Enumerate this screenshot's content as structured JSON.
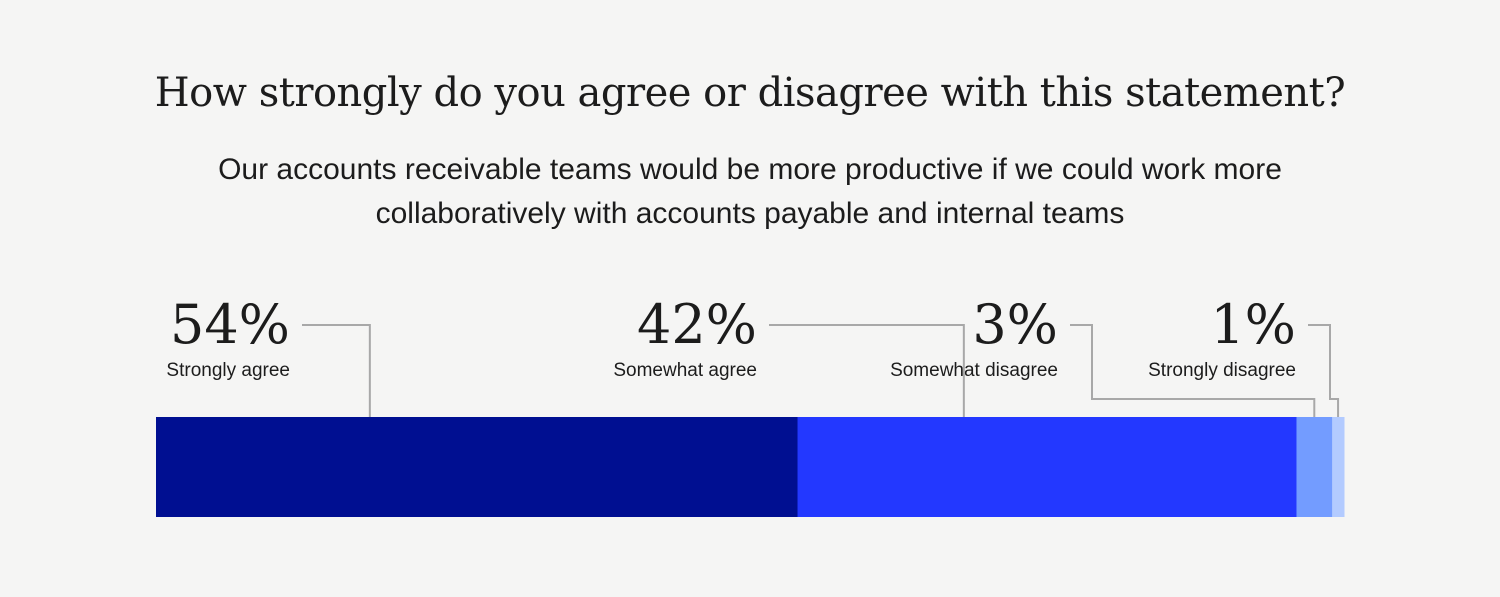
{
  "title": "How strongly do you agree or disagree with this statement?",
  "subtitle": "Our accounts receivable teams would be more productive if we could work more collaboratively with accounts payable and internal teams",
  "chart_data": {
    "type": "bar",
    "orientation": "horizontal-stacked",
    "categories": [
      "Strongly agree",
      "Somewhat agree",
      "Somewhat disagree",
      "Strongly disagree"
    ],
    "values": [
      54,
      42,
      3,
      1
    ],
    "value_labels": [
      "54%",
      "42%",
      "3%",
      "1%"
    ],
    "unit": "%",
    "colors": [
      "#000f91",
      "#2338ff",
      "#739cff",
      "#b3cbff"
    ],
    "total": 100,
    "legend": "none",
    "grid": false
  }
}
